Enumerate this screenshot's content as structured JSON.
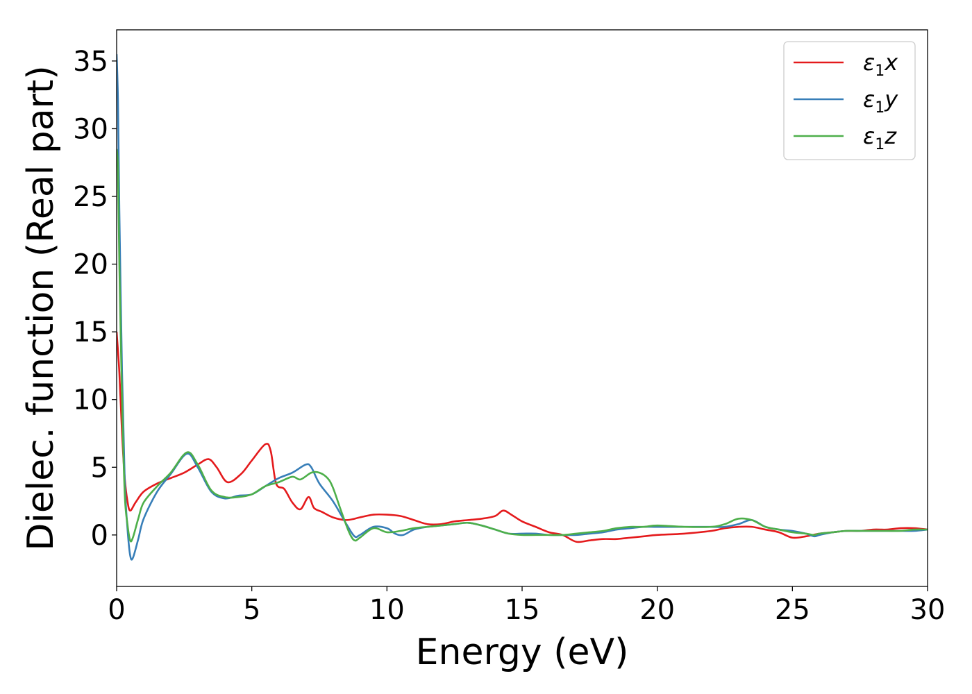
{
  "chart_data": {
    "type": "line",
    "title": "",
    "xlabel": "Energy (eV)",
    "ylabel": "Dielec. function (Real part)",
    "xlim": [
      0,
      30
    ],
    "ylim": [
      -3.8,
      37.3
    ],
    "xticks": [
      0,
      5,
      10,
      15,
      20,
      25,
      30
    ],
    "yticks": [
      0,
      5,
      10,
      15,
      20,
      25,
      30,
      35
    ],
    "grid": false,
    "legend_position": "top-right",
    "series": [
      {
        "name": "ε₁x",
        "legend_main": "ε",
        "legend_sub": "1",
        "legend_suffix": "x",
        "color": "#e41a1c",
        "x": [
          0,
          0.1,
          0.2,
          0.3,
          0.4,
          0.5,
          0.7,
          1.0,
          1.5,
          2.0,
          2.5,
          3.0,
          3.4,
          3.7,
          4.1,
          4.6,
          5.0,
          5.5,
          5.7,
          5.9,
          6.2,
          6.5,
          6.8,
          7.1,
          7.3,
          7.6,
          8.0,
          8.5,
          9.0,
          9.5,
          10.0,
          10.5,
          11.0,
          11.5,
          12.0,
          12.5,
          13.0,
          13.5,
          14.0,
          14.3,
          14.6,
          15.0,
          15.5,
          16.0,
          16.5,
          17.0,
          17.5,
          18.0,
          18.5,
          19.0,
          19.5,
          20.0,
          21.0,
          22.0,
          22.5,
          23.0,
          23.5,
          24.0,
          24.5,
          25.0,
          25.5,
          26.0,
          26.5,
          27.0,
          27.5,
          28.0,
          28.5,
          29.0,
          29.5,
          30.0
        ],
        "values": [
          15.0,
          12.0,
          7.5,
          4.2,
          2.5,
          1.8,
          2.4,
          3.2,
          3.8,
          4.2,
          4.6,
          5.2,
          5.6,
          5.0,
          3.9,
          4.5,
          5.5,
          6.7,
          6.2,
          3.8,
          3.4,
          2.4,
          1.9,
          2.8,
          2.0,
          1.7,
          1.3,
          1.1,
          1.3,
          1.5,
          1.5,
          1.4,
          1.1,
          0.8,
          0.8,
          1.0,
          1.1,
          1.2,
          1.4,
          1.8,
          1.5,
          1.0,
          0.6,
          0.2,
          0.0,
          -0.5,
          -0.4,
          -0.3,
          -0.3,
          -0.2,
          -0.1,
          0.0,
          0.1,
          0.3,
          0.5,
          0.6,
          0.6,
          0.4,
          0.2,
          -0.2,
          -0.1,
          0.1,
          0.2,
          0.3,
          0.3,
          0.4,
          0.4,
          0.5,
          0.5,
          0.4
        ]
      },
      {
        "name": "ε₁y",
        "legend_main": "ε",
        "legend_sub": "1",
        "legend_suffix": "y",
        "color": "#377eb8",
        "x": [
          0,
          0.05,
          0.1,
          0.2,
          0.3,
          0.4,
          0.5,
          0.6,
          0.8,
          1.0,
          1.5,
          2.0,
          2.6,
          3.0,
          3.5,
          4.0,
          4.5,
          5.0,
          5.5,
          6.0,
          6.5,
          7.0,
          7.2,
          7.5,
          8.0,
          8.5,
          8.8,
          9.0,
          9.5,
          10.0,
          10.3,
          10.6,
          11.0,
          11.5,
          12.0,
          12.5,
          13.0,
          13.5,
          14.0,
          14.5,
          15.0,
          15.5,
          16.0,
          16.5,
          17.0,
          17.5,
          18.0,
          18.5,
          19.0,
          19.5,
          20.0,
          21.0,
          22.0,
          22.5,
          23.0,
          23.5,
          24.0,
          24.5,
          25.0,
          25.5,
          25.8,
          26.0,
          26.5,
          27.0,
          27.5,
          28.0,
          28.5,
          29.0,
          29.5,
          30.0
        ],
        "values": [
          35.5,
          32.0,
          24.0,
          12.0,
          4.0,
          0.5,
          -1.5,
          -1.7,
          -0.3,
          1.2,
          3.2,
          4.5,
          6.0,
          5.0,
          3.2,
          2.7,
          2.9,
          3.0,
          3.6,
          4.2,
          4.6,
          5.2,
          5.0,
          3.8,
          2.5,
          0.8,
          -0.1,
          0.0,
          0.6,
          0.5,
          0.1,
          0.0,
          0.4,
          0.6,
          0.7,
          0.8,
          0.9,
          0.7,
          0.4,
          0.1,
          0.1,
          0.1,
          0.0,
          0.0,
          0.0,
          0.1,
          0.2,
          0.4,
          0.5,
          0.6,
          0.6,
          0.6,
          0.6,
          0.6,
          0.8,
          1.1,
          0.6,
          0.4,
          0.3,
          0.1,
          -0.1,
          0.0,
          0.2,
          0.3,
          0.3,
          0.3,
          0.3,
          0.3,
          0.3,
          0.4
        ]
      },
      {
        "name": "ε₁z",
        "legend_main": "ε",
        "legend_sub": "1",
        "legend_suffix": "z",
        "color": "#4daf4a",
        "x": [
          0,
          0.05,
          0.1,
          0.2,
          0.3,
          0.4,
          0.5,
          0.6,
          0.8,
          1.0,
          1.5,
          2.0,
          2.6,
          3.0,
          3.5,
          4.0,
          4.5,
          5.0,
          5.5,
          6.0,
          6.5,
          6.8,
          7.2,
          7.5,
          7.8,
          8.0,
          8.3,
          8.6,
          8.8,
          9.0,
          9.5,
          10.0,
          10.5,
          11.0,
          11.5,
          12.0,
          12.5,
          13.0,
          13.5,
          14.0,
          14.5,
          15.0,
          15.5,
          16.0,
          16.5,
          17.0,
          17.5,
          18.0,
          18.5,
          19.0,
          19.5,
          20.0,
          21.0,
          22.0,
          22.5,
          23.0,
          23.5,
          24.0,
          24.5,
          25.0,
          25.5,
          25.8,
          26.0,
          26.5,
          27.0,
          27.5,
          28.0,
          28.5,
          29.0,
          29.5,
          30.0
        ],
        "values": [
          28.5,
          27.0,
          20.0,
          10.0,
          3.0,
          0.8,
          -0.4,
          -0.2,
          1.2,
          2.4,
          3.6,
          4.6,
          6.1,
          5.2,
          3.3,
          2.8,
          2.8,
          3.0,
          3.6,
          3.9,
          4.3,
          4.1,
          4.6,
          4.6,
          4.2,
          3.5,
          1.8,
          0.2,
          -0.4,
          -0.2,
          0.5,
          0.2,
          0.3,
          0.5,
          0.6,
          0.7,
          0.8,
          0.9,
          0.7,
          0.4,
          0.1,
          0.0,
          0.0,
          0.0,
          0.0,
          0.1,
          0.2,
          0.3,
          0.5,
          0.6,
          0.6,
          0.7,
          0.6,
          0.6,
          0.8,
          1.2,
          1.1,
          0.6,
          0.4,
          0.2,
          0.1,
          0.0,
          0.1,
          0.2,
          0.3,
          0.3,
          0.3,
          0.3,
          0.3,
          0.4,
          0.4
        ]
      }
    ]
  }
}
